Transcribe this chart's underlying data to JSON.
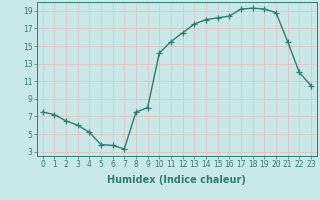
{
  "x": [
    0,
    1,
    2,
    3,
    4,
    5,
    6,
    7,
    8,
    9,
    10,
    11,
    12,
    13,
    14,
    15,
    16,
    17,
    18,
    19,
    20,
    21,
    22,
    23
  ],
  "y": [
    7.5,
    7.2,
    6.5,
    6.0,
    5.2,
    3.8,
    3.7,
    3.3,
    7.5,
    8.0,
    14.2,
    15.5,
    16.5,
    17.5,
    18.0,
    18.2,
    18.4,
    19.2,
    19.3,
    19.2,
    18.8,
    15.5,
    12.0,
    10.5
  ],
  "line_color": "#2d7d6e",
  "marker": "+",
  "markersize": 4,
  "linewidth": 1.0,
  "bg_color": "#c8e8e8",
  "grid_color": "#e8b8b8",
  "xlabel": "Humidex (Indice chaleur)",
  "xlim": [
    -0.5,
    23.5
  ],
  "ylim": [
    2.5,
    20.0
  ],
  "yticks": [
    3,
    5,
    7,
    9,
    11,
    13,
    15,
    17,
    19
  ],
  "xticks": [
    0,
    1,
    2,
    3,
    4,
    5,
    6,
    7,
    8,
    9,
    10,
    11,
    12,
    13,
    14,
    15,
    16,
    17,
    18,
    19,
    20,
    21,
    22,
    23
  ],
  "tick_labelsize": 5.5,
  "xlabel_fontsize": 7
}
